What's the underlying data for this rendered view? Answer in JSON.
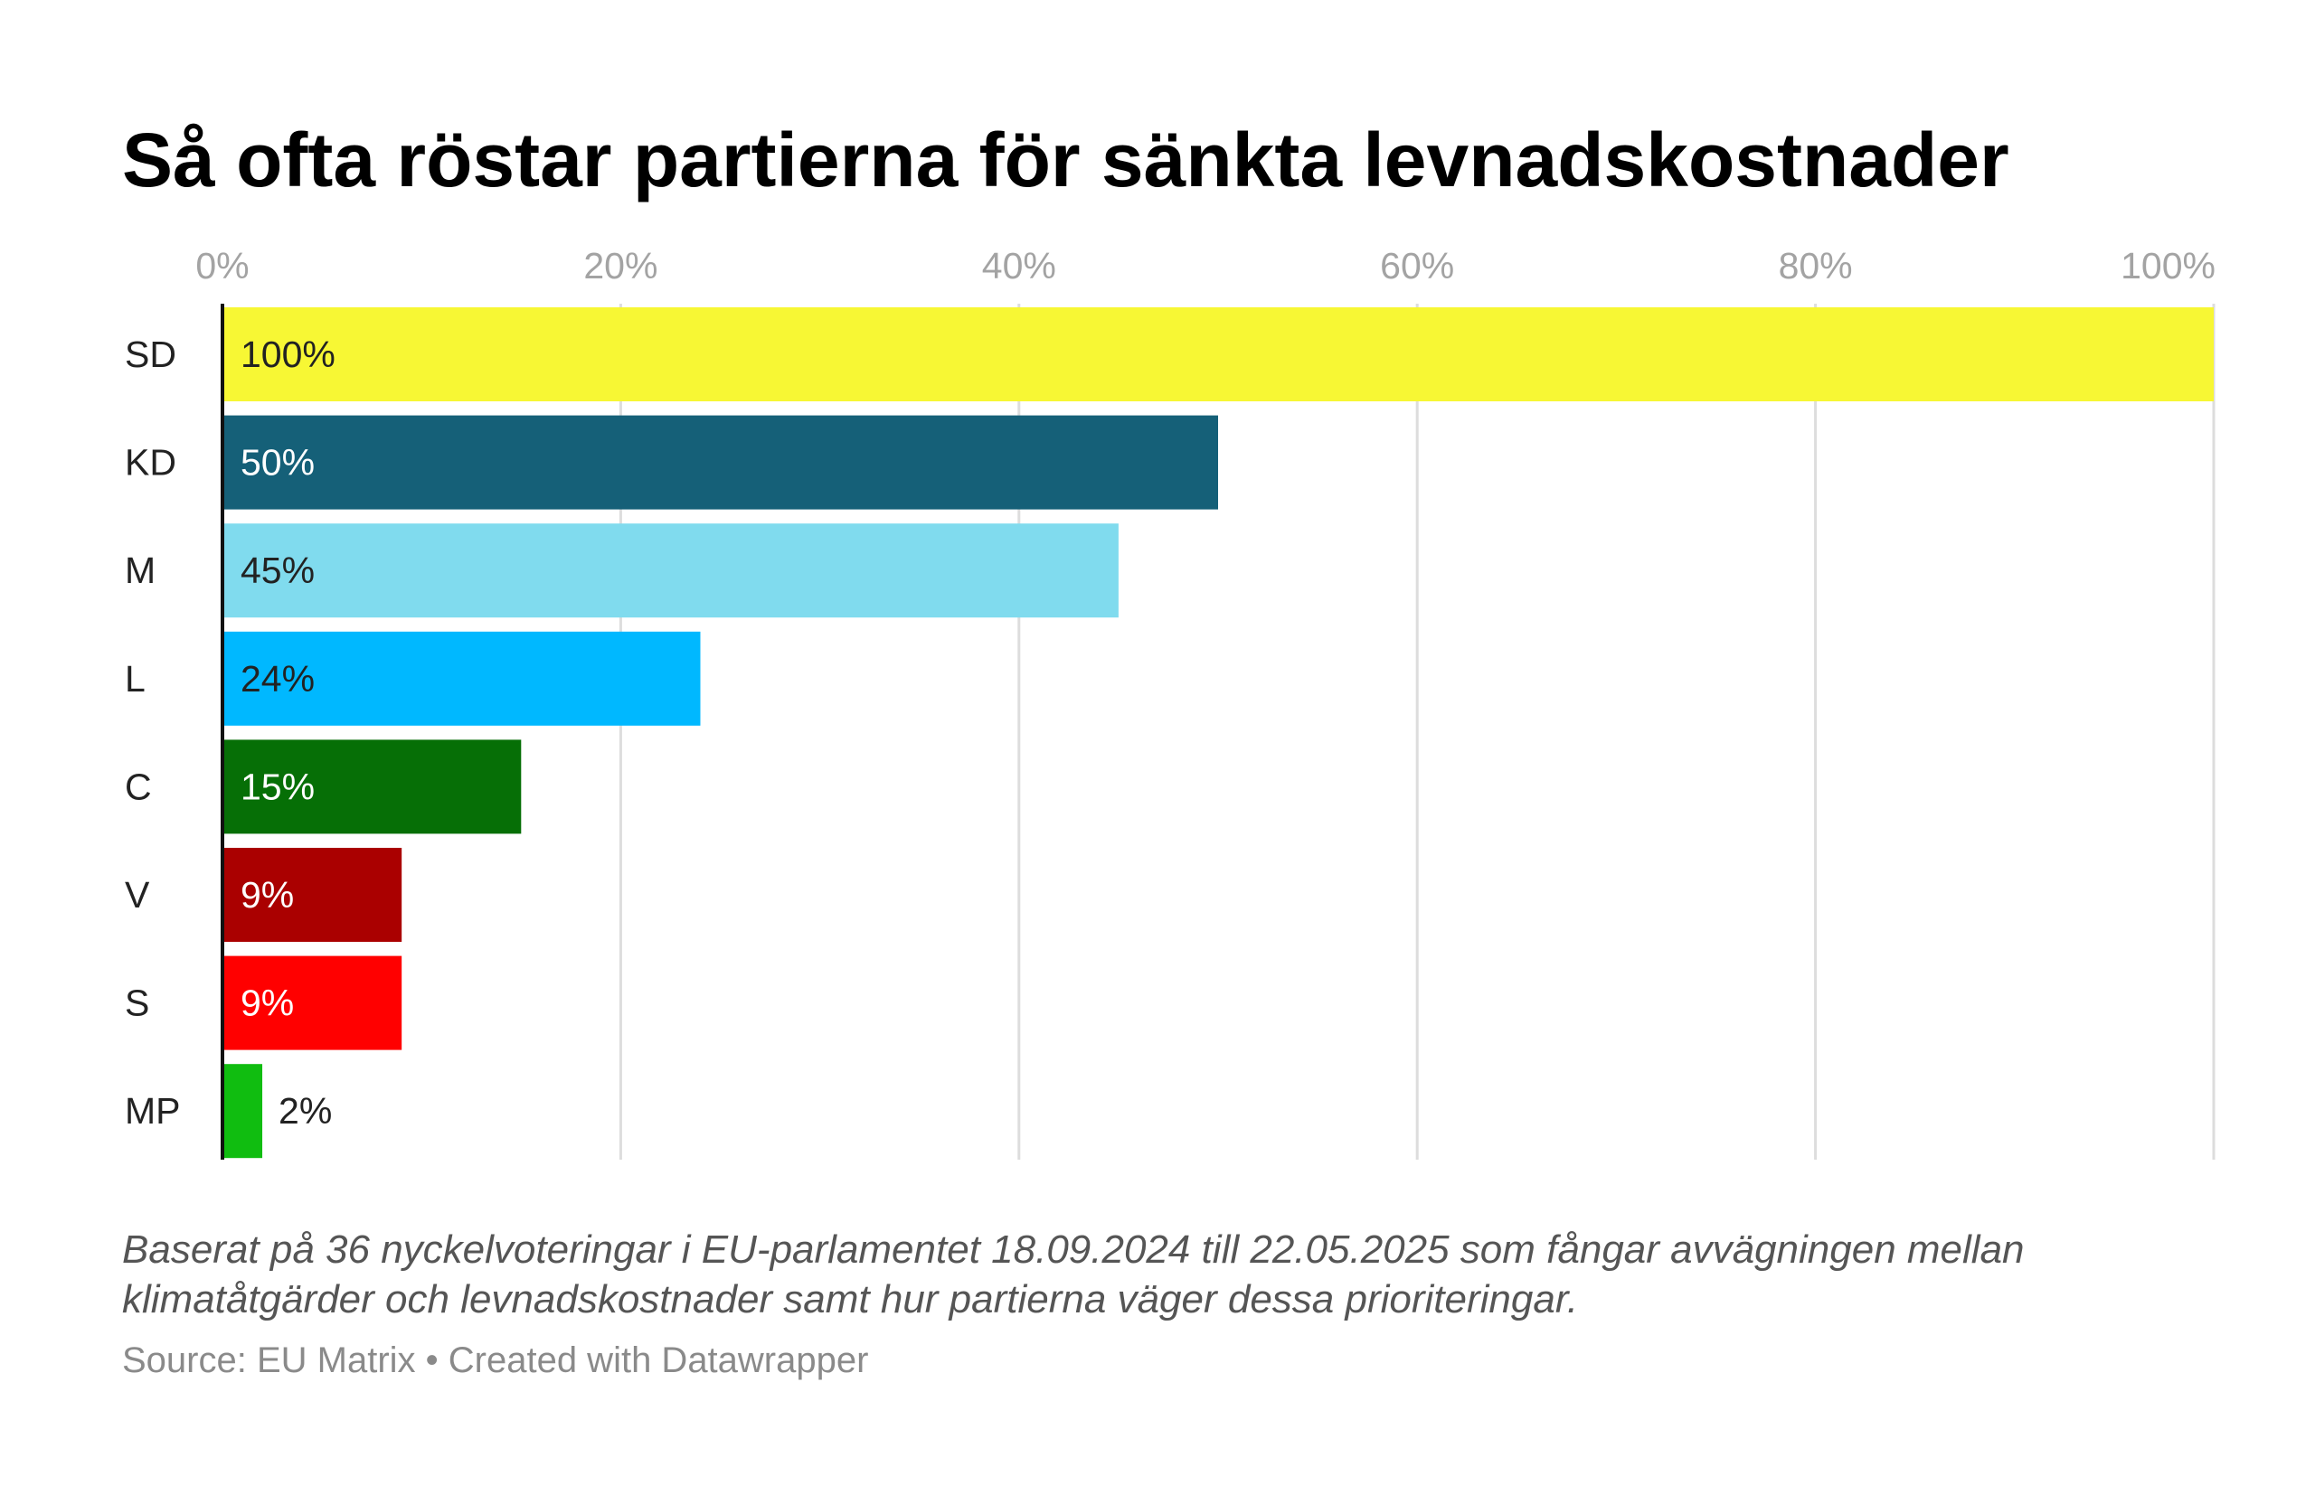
{
  "chart_data": {
    "type": "bar",
    "orientation": "horizontal",
    "title": "Så ofta röstar partierna för sänkta levnadskostnader",
    "categories": [
      "SD",
      "KD",
      "M",
      "L",
      "C",
      "V",
      "S",
      "MP"
    ],
    "values": [
      100,
      50,
      45,
      24,
      15,
      9,
      9,
      2
    ],
    "value_labels": [
      "100%",
      "50%",
      "45%",
      "24%",
      "15%",
      "9%",
      "9%",
      "2%"
    ],
    "colors": [
      "#f7f734",
      "#156078",
      "#80dbee",
      "#00b8ff",
      "#066f06",
      "#aa0000",
      "#ff0000",
      "#10bd10"
    ],
    "label_colors": [
      "#222222",
      "#ffffff",
      "#222222",
      "#222222",
      "#ffffff",
      "#ffffff",
      "#ffffff",
      "#222222"
    ],
    "xlim": [
      0,
      100
    ],
    "ticks": [
      0,
      20,
      40,
      60,
      80,
      100
    ],
    "tick_labels": [
      "0%",
      "20%",
      "40%",
      "60%",
      "80%",
      "100%"
    ],
    "tick_position": "top",
    "grid": true,
    "legend": "none"
  },
  "notes": "Baserat på 36 nyckelvoteringar i EU-parlamentet 18.09.2024 till 22.05.2025 som fångar avvägningen mellan klimatåtgärder och levnadskostnader samt hur partierna väger dessa prioriteringar.",
  "source": "Source: EU Matrix • Created with Datawrapper"
}
